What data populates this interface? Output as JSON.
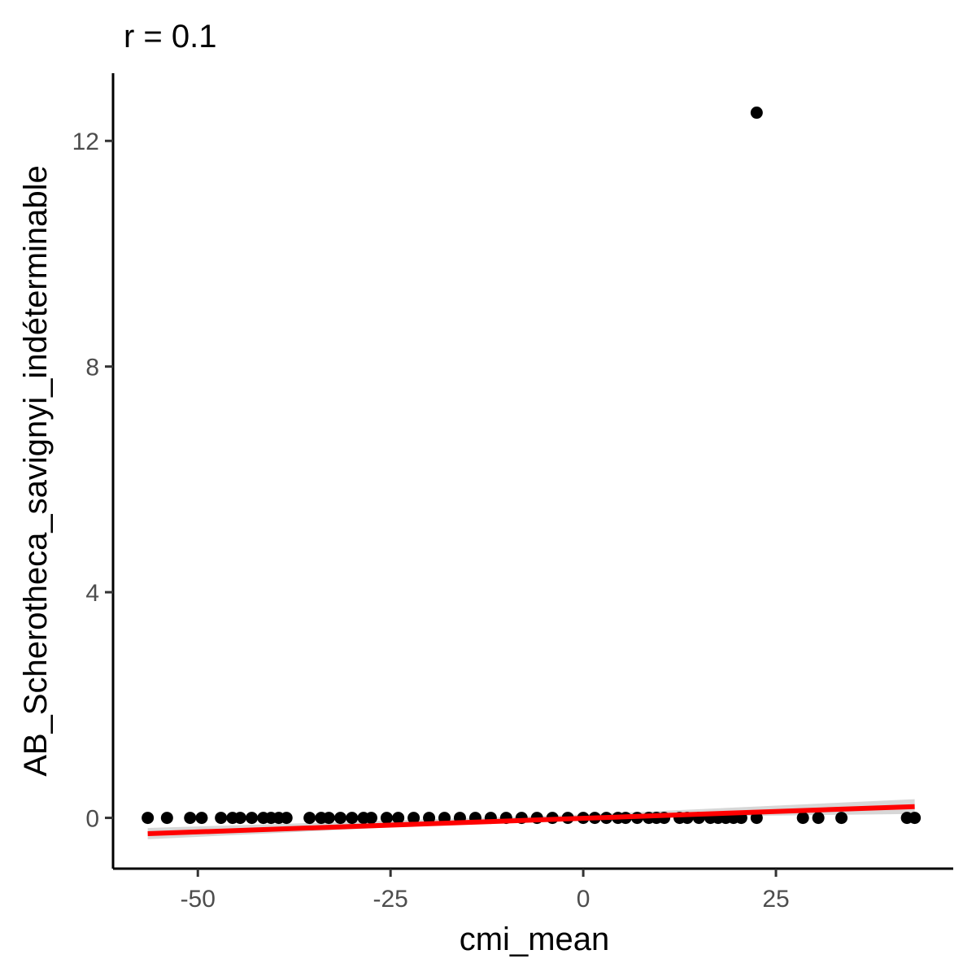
{
  "chart_data": {
    "type": "scatter",
    "title": "r = 0.1",
    "xlabel": "cmi_mean",
    "ylabel": "AB_Scherotheca_savignyi_indéterminable",
    "xlim": [
      -61,
      48
    ],
    "ylim": [
      -0.9,
      13.2
    ],
    "x_ticks": [
      -50,
      -25,
      0,
      25
    ],
    "x_tick_labels": [
      "-50",
      "-25",
      "0",
      "25"
    ],
    "y_ticks": [
      0,
      4,
      8,
      12
    ],
    "y_tick_labels": [
      "0",
      "4",
      "8",
      "12"
    ],
    "grid": false,
    "points": [
      {
        "x": -56.5,
        "y": 0
      },
      {
        "x": -54,
        "y": 0
      },
      {
        "x": -51,
        "y": 0
      },
      {
        "x": -49.5,
        "y": 0
      },
      {
        "x": -47,
        "y": 0
      },
      {
        "x": -45.5,
        "y": 0
      },
      {
        "x": -44.5,
        "y": 0
      },
      {
        "x": -43,
        "y": 0
      },
      {
        "x": -41.5,
        "y": 0
      },
      {
        "x": -40.5,
        "y": 0
      },
      {
        "x": -39.5,
        "y": 0
      },
      {
        "x": -38.5,
        "y": 0
      },
      {
        "x": -35.5,
        "y": 0
      },
      {
        "x": -34,
        "y": 0
      },
      {
        "x": -33,
        "y": 0
      },
      {
        "x": -31.5,
        "y": 0
      },
      {
        "x": -30,
        "y": 0
      },
      {
        "x": -28.5,
        "y": 0
      },
      {
        "x": -27.5,
        "y": 0
      },
      {
        "x": -25.5,
        "y": 0
      },
      {
        "x": -24,
        "y": 0
      },
      {
        "x": -22,
        "y": 0
      },
      {
        "x": -20,
        "y": 0
      },
      {
        "x": -18,
        "y": 0
      },
      {
        "x": -16,
        "y": 0
      },
      {
        "x": -14,
        "y": 0
      },
      {
        "x": -12,
        "y": 0
      },
      {
        "x": -10,
        "y": 0
      },
      {
        "x": -8,
        "y": 0
      },
      {
        "x": -6,
        "y": 0
      },
      {
        "x": -4,
        "y": 0
      },
      {
        "x": -2,
        "y": 0
      },
      {
        "x": 0,
        "y": 0
      },
      {
        "x": 1.5,
        "y": 0
      },
      {
        "x": 3,
        "y": 0
      },
      {
        "x": 4.5,
        "y": 0
      },
      {
        "x": 5.5,
        "y": 0
      },
      {
        "x": 7,
        "y": 0
      },
      {
        "x": 8.5,
        "y": 0
      },
      {
        "x": 9.5,
        "y": 0
      },
      {
        "x": 10.5,
        "y": 0
      },
      {
        "x": 12.5,
        "y": 0
      },
      {
        "x": 13.5,
        "y": 0
      },
      {
        "x": 15,
        "y": 0
      },
      {
        "x": 16.5,
        "y": 0
      },
      {
        "x": 17.5,
        "y": 0
      },
      {
        "x": 18.5,
        "y": 0
      },
      {
        "x": 19.5,
        "y": 0
      },
      {
        "x": 20.5,
        "y": 0
      },
      {
        "x": 22.5,
        "y": 0
      },
      {
        "x": 22.5,
        "y": 12.5
      },
      {
        "x": 28.5,
        "y": 0
      },
      {
        "x": 30.5,
        "y": 0
      },
      {
        "x": 33.5,
        "y": 0
      },
      {
        "x": 42,
        "y": 0
      },
      {
        "x": 43,
        "y": 0
      }
    ],
    "trend_line": {
      "color": "#ff0000",
      "x_start": -56.5,
      "y_start": -0.28,
      "x_end": 43,
      "y_end": 0.2
    },
    "confidence_band": {
      "color": "#d3d3d3",
      "upper": [
        [
          -56.5,
          -0.18
        ],
        [
          0,
          0.06
        ],
        [
          43,
          0.33
        ]
      ],
      "lower": [
        [
          -56.5,
          -0.38
        ],
        [
          0,
          0.0
        ],
        [
          43,
          0.07
        ]
      ]
    },
    "point_color": "#000000"
  }
}
